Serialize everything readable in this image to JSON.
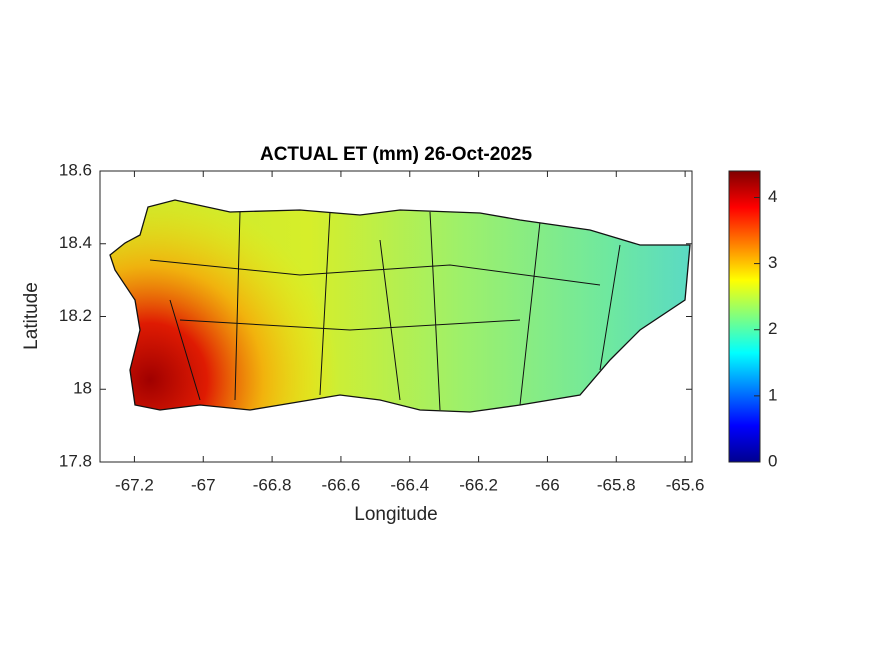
{
  "chart_data": {
    "type": "map",
    "title": "ACTUAL ET (mm) 26-Oct-2025",
    "x_label": "Longitude",
    "y_label": "Latitude",
    "xlim": [
      -67.3,
      -65.58
    ],
    "xticks": [
      -67.2,
      -67,
      -66.8,
      -66.6,
      -66.4,
      -66.2,
      -66,
      -65.8,
      -65.6
    ],
    "ylim": [
      17.8,
      18.6
    ],
    "yticks": [
      17.8,
      18,
      18.2,
      18.4,
      18.6
    ],
    "colorbar": {
      "lim": [
        0,
        4.4
      ],
      "ticks": [
        0,
        1,
        2,
        3,
        4
      ],
      "colormap": "jet"
    }
  }
}
